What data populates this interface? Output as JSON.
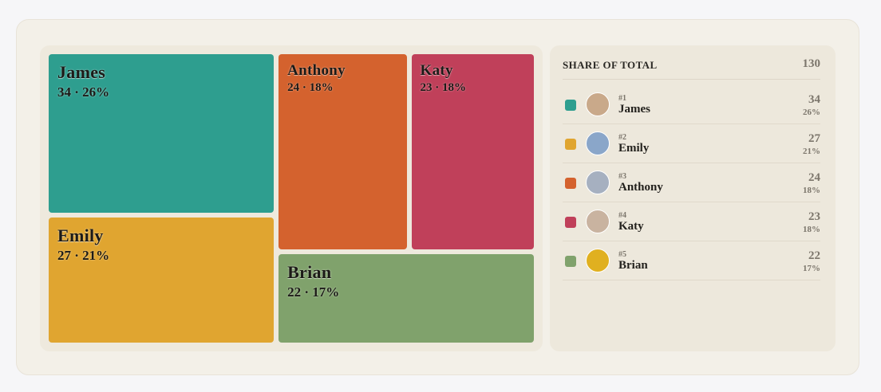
{
  "chart_data": {
    "type": "treemap",
    "categories": [
      "James",
      "Emily",
      "Anthony",
      "Katy",
      "Brian"
    ],
    "values": [
      34,
      27,
      24,
      23,
      22
    ],
    "value_labels": [
      "34 · 26%",
      "27 · 21%",
      "24 · 18%",
      "23 · 18%",
      "22 · 17%"
    ],
    "colors": [
      "#2e9e8f",
      "#e0a530",
      "#d4622e",
      "#c0405a",
      "#80a26c"
    ]
  },
  "sidebar": {
    "title": "SHARE OF TOTAL",
    "total": 130,
    "ranks": [
      "#1",
      "#2",
      "#3",
      "#4",
      "#5"
    ],
    "share_labels": [
      "26%",
      "21%",
      "18%",
      "18%",
      "17%"
    ]
  }
}
